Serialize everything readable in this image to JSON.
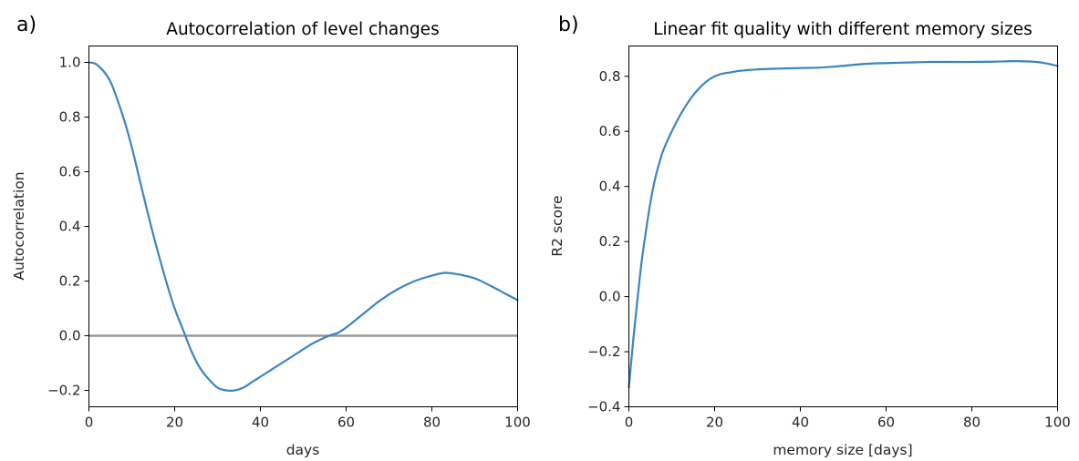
{
  "chart_data": [
    {
      "panel_label": "a)",
      "type": "line",
      "title": "Autocorrelation of level changes",
      "xlabel": "days",
      "ylabel": "Autocorrelation",
      "xlim": [
        0,
        100
      ],
      "ylim": [
        -0.26,
        1.06
      ],
      "xticks": [
        0,
        20,
        40,
        60,
        80,
        100
      ],
      "yticks": [
        -0.2,
        0.0,
        0.2,
        0.4,
        0.6,
        0.8,
        1.0
      ],
      "xtick_labels": [
        "0",
        "20",
        "40",
        "60",
        "80",
        "100"
      ],
      "ytick_labels": [
        "−0.2",
        "0.0",
        "0.2",
        "0.4",
        "0.6",
        "0.8",
        "1.0"
      ],
      "reference_line": {
        "y": 0.0,
        "color": "#999999"
      },
      "grid": false,
      "series": [
        {
          "color": "#3a85c3",
          "x": [
            0,
            2,
            5,
            8,
            10,
            12,
            15,
            18,
            20,
            22,
            24,
            26,
            28,
            30,
            32,
            34,
            36,
            38,
            40,
            44,
            48,
            52,
            56,
            58,
            60,
            64,
            68,
            72,
            76,
            80,
            83,
            86,
            90,
            94,
            97,
            100
          ],
          "y": [
            1.0,
            0.99,
            0.93,
            0.8,
            0.69,
            0.56,
            0.37,
            0.2,
            0.1,
            0.02,
            -0.06,
            -0.12,
            -0.16,
            -0.19,
            -0.2,
            -0.2,
            -0.19,
            -0.17,
            -0.15,
            -0.11,
            -0.07,
            -0.03,
            0.0,
            0.01,
            0.03,
            0.08,
            0.13,
            0.17,
            0.2,
            0.22,
            0.23,
            0.225,
            0.21,
            0.18,
            0.155,
            0.13
          ]
        }
      ]
    },
    {
      "panel_label": "b)",
      "type": "line",
      "title": "Linear fit quality with different memory sizes",
      "xlabel": "memory size [days]",
      "ylabel": "R2 score",
      "xlim": [
        0,
        100
      ],
      "ylim": [
        -0.4,
        0.91
      ],
      "xticks": [
        0,
        20,
        40,
        60,
        80,
        100
      ],
      "yticks": [
        -0.4,
        -0.2,
        0.0,
        0.2,
        0.4,
        0.6,
        0.8
      ],
      "xtick_labels": [
        "0",
        "20",
        "40",
        "60",
        "80",
        "100"
      ],
      "ytick_labels": [
        "−0.4",
        "−0.2",
        "0.0",
        "0.2",
        "0.4",
        "0.6",
        "0.8"
      ],
      "grid": false,
      "series": [
        {
          "color": "#3a85c3",
          "x": [
            0,
            1,
            2,
            3,
            4,
            5,
            6,
            7,
            8,
            10,
            12,
            14,
            16,
            18,
            20,
            22,
            24,
            26,
            30,
            35,
            40,
            45,
            50,
            55,
            60,
            65,
            70,
            75,
            80,
            85,
            90,
            95,
            98,
            100
          ],
          "y": [
            -0.33,
            -0.16,
            -0.01,
            0.13,
            0.24,
            0.34,
            0.42,
            0.48,
            0.53,
            0.6,
            0.66,
            0.71,
            0.75,
            0.78,
            0.8,
            0.81,
            0.815,
            0.82,
            0.825,
            0.828,
            0.83,
            0.832,
            0.838,
            0.845,
            0.848,
            0.85,
            0.852,
            0.852,
            0.852,
            0.853,
            0.855,
            0.852,
            0.845,
            0.837
          ]
        }
      ]
    }
  ]
}
